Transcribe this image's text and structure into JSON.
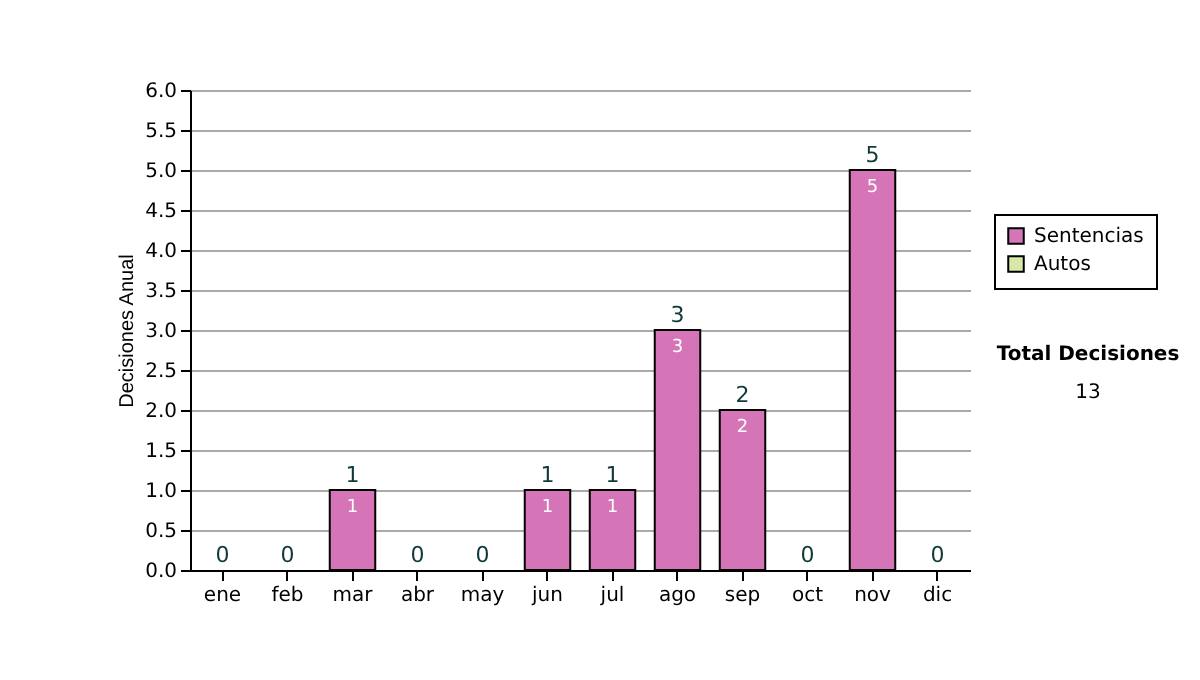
{
  "chart_data": {
    "type": "bar",
    "stacked": true,
    "ylabel": "Decisiones Anual",
    "categories": [
      "ene",
      "feb",
      "mar",
      "abr",
      "may",
      "jun",
      "jul",
      "ago",
      "sep",
      "oct",
      "nov",
      "dic"
    ],
    "series": [
      {
        "name": "Sentencias",
        "color": "#d674b8",
        "values": [
          0,
          0,
          1,
          0,
          0,
          1,
          1,
          3,
          2,
          0,
          5,
          0
        ],
        "value_labels": [
          null,
          null,
          "1",
          null,
          null,
          "1",
          "1",
          "3",
          "2",
          null,
          "5",
          null
        ]
      },
      {
        "name": "Autos",
        "color": "#d8e8a8",
        "values": [
          0,
          0,
          0,
          0,
          0,
          0,
          0,
          0,
          0,
          0,
          0,
          0
        ]
      }
    ],
    "totals": [
      "0",
      "0",
      "1",
      "0",
      "0",
      "1",
      "1",
      "3",
      "2",
      "0",
      "5",
      "0"
    ],
    "ylim": [
      0,
      6
    ],
    "yticks": [
      {
        "value": 0,
        "label": "0.0"
      },
      {
        "value": 0.5,
        "label": "0.5"
      },
      {
        "value": 1,
        "label": "1.0"
      },
      {
        "value": 1.5,
        "label": "1.5"
      },
      {
        "value": 2,
        "label": "2.0"
      },
      {
        "value": 2.5,
        "label": "2.5"
      },
      {
        "value": 3,
        "label": "3.0"
      },
      {
        "value": 3.5,
        "label": "3.5"
      },
      {
        "value": 4,
        "label": "4.0"
      },
      {
        "value": 4.5,
        "label": "4.5"
      },
      {
        "value": 5,
        "label": "5.0"
      },
      {
        "value": 5.5,
        "label": "5.5"
      },
      {
        "value": 6,
        "label": "6.0"
      }
    ],
    "grid": "y",
    "legend": "right",
    "annotations": [
      "Total Decisiones",
      "13"
    ]
  }
}
